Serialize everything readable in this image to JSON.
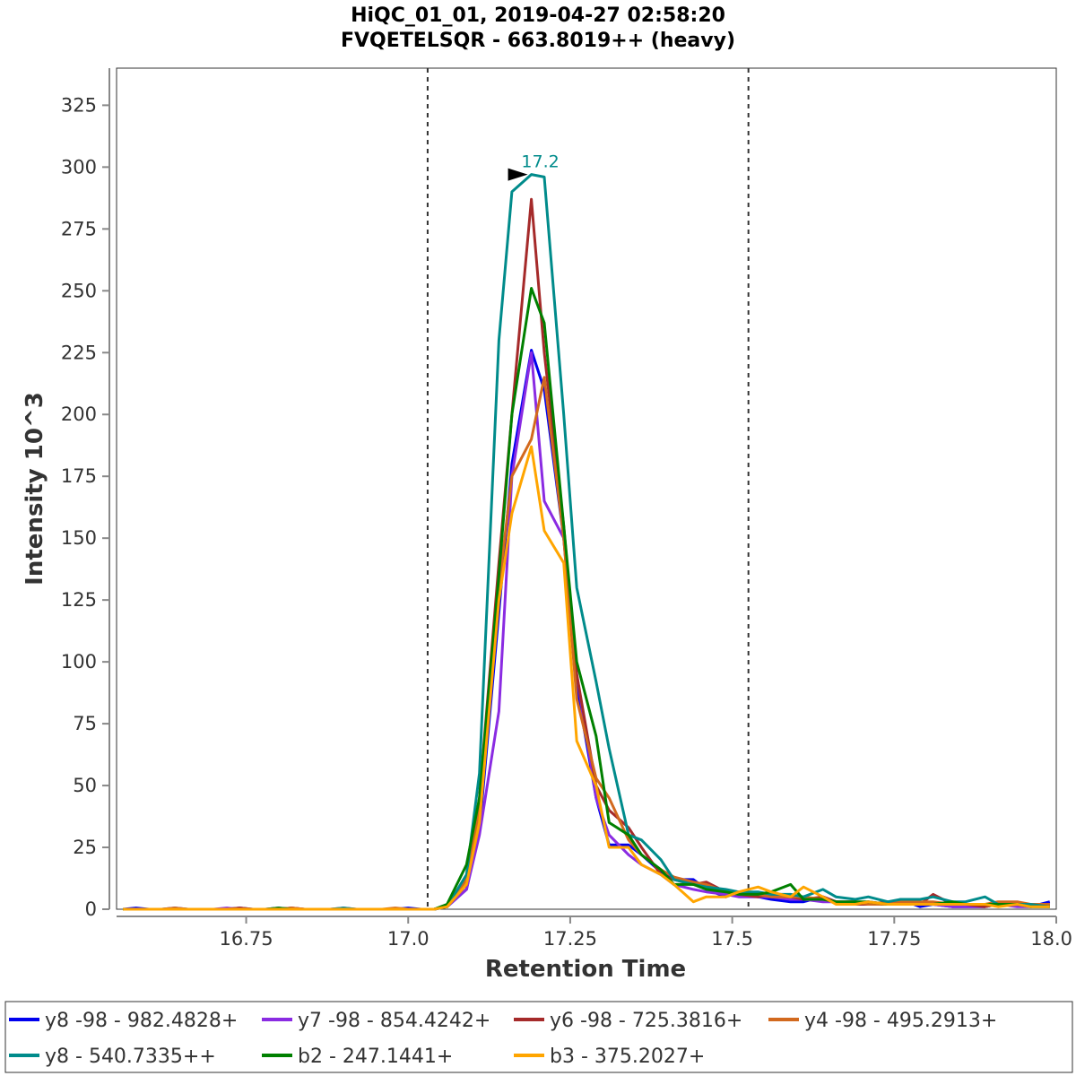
{
  "chart_data": {
    "type": "line",
    "title": "HiQC_01_01, 2019-04-27 02:58:20",
    "subtitle": "FVQETELSQR - 663.8019++ (heavy)",
    "xlabel": "Retention Time",
    "ylabel": "Intensity 10^3",
    "xlim": [
      16.55,
      18.0
    ],
    "ylim": [
      0,
      340
    ],
    "xticks": [
      16.75,
      17.0,
      17.25,
      17.5,
      17.75,
      18.0
    ],
    "xtick_labels": [
      "16.75",
      "17.0",
      "17.25",
      "17.5",
      "17.75",
      "18.0"
    ],
    "yticks": [
      0,
      25,
      50,
      75,
      100,
      125,
      150,
      175,
      200,
      225,
      250,
      275,
      300,
      325
    ],
    "ytick_labels": [
      "0",
      "25",
      "50",
      "75",
      "100",
      "125",
      "150",
      "175",
      "200",
      "225",
      "250",
      "275",
      "300",
      "325"
    ],
    "grid": false,
    "legend_position": "bottom",
    "boundaries": [
      17.03,
      17.525
    ],
    "peak_annotation": {
      "label": "17.2",
      "x": 17.19,
      "y": 297,
      "color": "#008b8b"
    },
    "x": [
      16.56,
      16.58,
      16.6,
      16.62,
      16.64,
      16.66,
      16.68,
      16.7,
      16.72,
      16.74,
      16.76,
      16.78,
      16.8,
      16.82,
      16.84,
      16.86,
      16.88,
      16.9,
      16.92,
      16.94,
      16.96,
      16.98,
      17.0,
      17.02,
      17.04,
      17.06,
      17.09,
      17.11,
      17.14,
      17.16,
      17.19,
      17.21,
      17.24,
      17.26,
      17.29,
      17.31,
      17.34,
      17.36,
      17.39,
      17.41,
      17.44,
      17.46,
      17.49,
      17.51,
      17.54,
      17.56,
      17.59,
      17.61,
      17.64,
      17.66,
      17.69,
      17.71,
      17.74,
      17.76,
      17.79,
      17.81,
      17.84,
      17.86,
      17.89,
      17.91,
      17.94,
      17.96,
      17.99
    ],
    "series": [
      {
        "name": "y8 -98 - 982.4828+",
        "color": "#0000ee",
        "values": [
          0,
          0.5,
          0,
          0,
          0.5,
          0,
          0,
          0,
          0,
          0.5,
          0,
          0,
          0.5,
          0,
          0,
          0,
          0,
          0,
          0,
          0,
          0,
          0,
          0.5,
          0,
          0,
          1,
          8,
          32,
          120,
          180,
          226,
          210,
          150,
          90,
          45,
          26,
          26,
          22,
          15,
          12,
          12,
          8,
          5,
          7,
          5,
          4,
          3,
          3,
          5,
          3,
          2,
          3,
          2,
          4,
          1,
          2,
          1,
          1,
          1,
          2,
          2,
          1,
          3
        ]
      },
      {
        "name": "y7 -98 - 854.4242+",
        "color": "#8a2be2",
        "values": [
          0,
          0,
          0,
          0,
          0,
          0,
          0,
          0,
          0.5,
          0,
          0,
          0,
          0,
          0.5,
          0,
          0,
          0,
          0.5,
          0,
          0,
          0,
          0,
          0,
          0,
          0,
          1,
          8,
          30,
          80,
          175,
          225,
          165,
          150,
          95,
          45,
          30,
          22,
          18,
          14,
          10,
          8,
          7,
          6,
          5,
          5,
          5,
          4,
          4,
          3,
          3,
          3,
          2,
          2,
          2,
          2,
          2,
          1,
          1,
          1,
          2,
          1,
          1,
          2
        ]
      },
      {
        "name": "y6 -98 - 725.3816+",
        "color": "#a52a2a",
        "values": [
          0,
          0,
          0,
          0,
          0,
          0,
          0,
          0,
          0,
          0.5,
          0,
          0,
          0,
          0.5,
          0,
          0,
          0,
          0,
          0,
          0,
          0,
          0,
          0,
          0,
          0,
          1,
          10,
          45,
          140,
          200,
          287,
          225,
          155,
          95,
          50,
          40,
          33,
          25,
          14,
          12,
          10,
          11,
          7,
          6,
          5,
          6,
          5,
          4,
          5,
          3,
          2,
          2,
          3,
          2,
          2,
          6,
          2,
          2,
          1,
          2,
          2,
          1,
          2
        ]
      },
      {
        "name": "y4 -98 - 495.2913+",
        "color": "#d2691e",
        "values": [
          0,
          0,
          0,
          0,
          0.5,
          0,
          0,
          0,
          0,
          0,
          0,
          0,
          0,
          0.5,
          0,
          0,
          0,
          0,
          0,
          0,
          0,
          0.5,
          0,
          0,
          0,
          1,
          12,
          40,
          130,
          175,
          190,
          215,
          150,
          85,
          53,
          45,
          28,
          22,
          16,
          13,
          11,
          10,
          7,
          6,
          6,
          5,
          5,
          5,
          4,
          3,
          3,
          2,
          2,
          3,
          3,
          3,
          2,
          2,
          2,
          3,
          3,
          2,
          2
        ]
      },
      {
        "name": "y8 - 540.7335++",
        "color": "#008b8b",
        "values": [
          0,
          0,
          0,
          0,
          0,
          0,
          0,
          0,
          0,
          0,
          0,
          0,
          0,
          0,
          0,
          0,
          0,
          0.5,
          0,
          0,
          0,
          0,
          0,
          0,
          0,
          1,
          14,
          55,
          230,
          290,
          297,
          296,
          200,
          130,
          92,
          65,
          30,
          28,
          20,
          12,
          10,
          9,
          8,
          7,
          7,
          6,
          6,
          5,
          8,
          5,
          4,
          5,
          3,
          4,
          4,
          5,
          3,
          3,
          5,
          2,
          2,
          2,
          1
        ]
      },
      {
        "name": "b2 - 247.1441+",
        "color": "#008000",
        "values": [
          0,
          0,
          0,
          0,
          0,
          0,
          0,
          0,
          0,
          0,
          0,
          0,
          0.5,
          0,
          0,
          0,
          0,
          0,
          0,
          0,
          0,
          0,
          0,
          0,
          0,
          2,
          18,
          45,
          135,
          200,
          251,
          237,
          155,
          100,
          70,
          35,
          30,
          22,
          16,
          10,
          10,
          8,
          7,
          6,
          6,
          7,
          10,
          4,
          4,
          3,
          3,
          3,
          2,
          2,
          2,
          2,
          3,
          2,
          2,
          2,
          2,
          1,
          1
        ]
      },
      {
        "name": "b3 - 375.2027+",
        "color": "#ffa500",
        "values": [
          0,
          0,
          0,
          0,
          0,
          0,
          0,
          0,
          0,
          0,
          0,
          0,
          0,
          0,
          0,
          0,
          0,
          0,
          0,
          0,
          0,
          0,
          0,
          0,
          0,
          1,
          10,
          35,
          125,
          160,
          187,
          153,
          140,
          68,
          50,
          25,
          25,
          18,
          14,
          10,
          3,
          5,
          5,
          7,
          9,
          7,
          5,
          9,
          5,
          2,
          2,
          3,
          2,
          2,
          2,
          2,
          2,
          2,
          2,
          1,
          2,
          1,
          1
        ]
      }
    ]
  }
}
